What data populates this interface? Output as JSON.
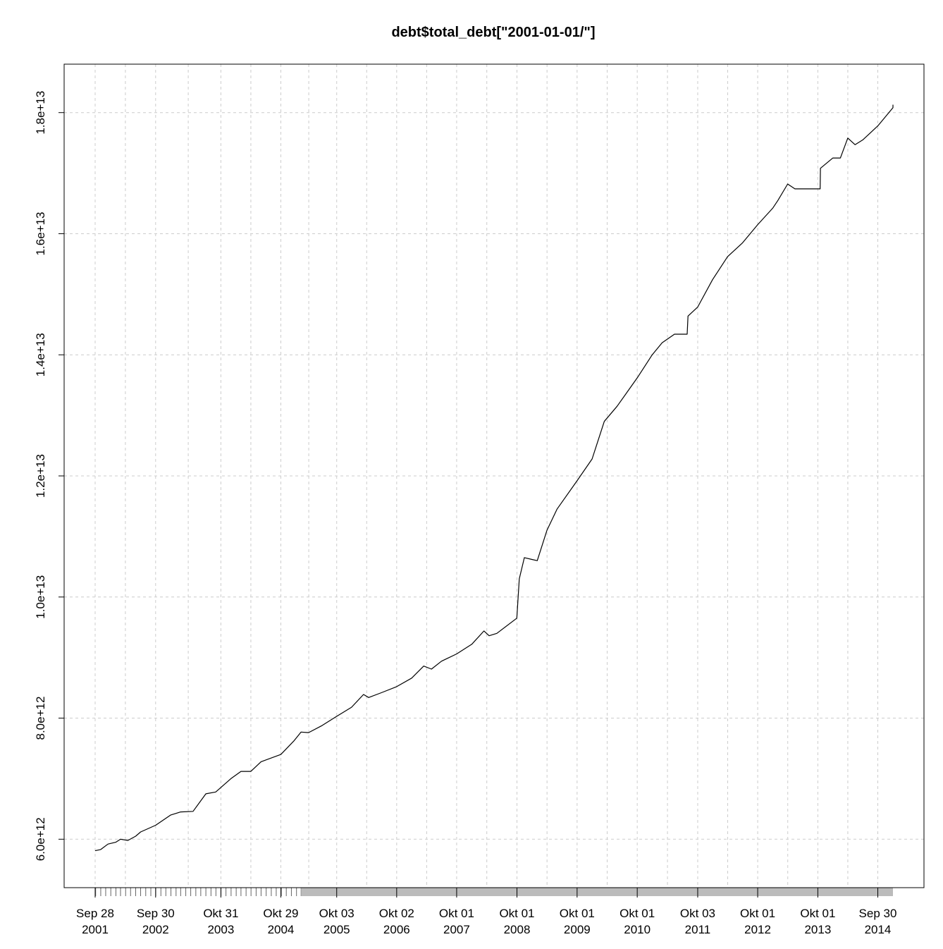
{
  "chart_data": {
    "type": "line",
    "title": "debt$total_debt[\"2001-01-01/\"]",
    "xlabel": "",
    "ylabel": "",
    "xlim": [
      "2001-09-28",
      "2014-12-31"
    ],
    "ylim": [
      5200000000000.0,
      18800000000000.0
    ],
    "grid": true,
    "y_ticks": [
      {
        "value": 6000000000000.0,
        "label": "6.0e+12"
      },
      {
        "value": 8000000000000.0,
        "label": "8.0e+12"
      },
      {
        "value": 10000000000000.0,
        "label": "1.0e+13"
      },
      {
        "value": 12000000000000.0,
        "label": "1.2e+13"
      },
      {
        "value": 14000000000000.0,
        "label": "1.4e+13"
      },
      {
        "value": 16000000000000.0,
        "label": "1.6e+13"
      },
      {
        "value": 18000000000000.0,
        "label": "1.8e+13"
      }
    ],
    "x_ticks": [
      {
        "date": "2001-09-28",
        "label1": "Sep 28",
        "label2": "2001"
      },
      {
        "date": "2002-09-30",
        "label1": "Sep 30",
        "label2": "2002"
      },
      {
        "date": "2003-10-31",
        "label1": "Okt 31",
        "label2": "2003"
      },
      {
        "date": "2004-10-29",
        "label1": "Okt 29",
        "label2": "2004"
      },
      {
        "date": "2005-10-03",
        "label1": "Okt 03",
        "label2": "2005"
      },
      {
        "date": "2006-10-02",
        "label1": "Okt 02",
        "label2": "2006"
      },
      {
        "date": "2007-10-01",
        "label1": "Okt 01",
        "label2": "2007"
      },
      {
        "date": "2008-10-01",
        "label1": "Okt 01",
        "label2": "2008"
      },
      {
        "date": "2009-10-01",
        "label1": "Okt 01",
        "label2": "2009"
      },
      {
        "date": "2010-10-01",
        "label1": "Okt 01",
        "label2": "2010"
      },
      {
        "date": "2011-10-03",
        "label1": "Okt 03",
        "label2": "2011"
      },
      {
        "date": "2012-10-01",
        "label1": "Okt 01",
        "label2": "2012"
      },
      {
        "date": "2013-10-01",
        "label1": "Okt 01",
        "label2": "2013"
      },
      {
        "date": "2014-09-30",
        "label1": "Sep 30",
        "label2": "2014"
      }
    ],
    "series": [
      {
        "values": [
          [
            "2001-09-28",
            5810000000000.0
          ],
          [
            "2001-11-01",
            5830000000000.0
          ],
          [
            "2001-12-15",
            5920000000000.0
          ],
          [
            "2002-01-31",
            5950000000000.0
          ],
          [
            "2002-03-01",
            6000000000000.0
          ],
          [
            "2002-04-15",
            5980000000000.0
          ],
          [
            "2002-06-01",
            6050000000000.0
          ],
          [
            "2002-07-01",
            6120000000000.0
          ],
          [
            "2002-09-30",
            6230000000000.0
          ],
          [
            "2002-12-31",
            6400000000000.0
          ],
          [
            "2003-03-01",
            6450000000000.0
          ],
          [
            "2003-05-15",
            6460000000000.0
          ],
          [
            "2003-08-01",
            6750000000000.0
          ],
          [
            "2003-09-30",
            6780000000000.0
          ],
          [
            "2003-12-31",
            7000000000000.0
          ],
          [
            "2004-03-01",
            7120000000000.0
          ],
          [
            "2004-04-30",
            7120000000000.0
          ],
          [
            "2004-07-01",
            7280000000000.0
          ],
          [
            "2004-10-29",
            7400000000000.0
          ],
          [
            "2005-01-15",
            7620000000000.0
          ],
          [
            "2005-03-01",
            7770000000000.0
          ],
          [
            "2005-04-15",
            7760000000000.0
          ],
          [
            "2005-07-01",
            7870000000000.0
          ],
          [
            "2005-10-03",
            8030000000000.0
          ],
          [
            "2006-01-01",
            8180000000000.0
          ],
          [
            "2006-03-15",
            8390000000000.0
          ],
          [
            "2006-04-15",
            8340000000000.0
          ],
          [
            "2006-07-01",
            8420000000000.0
          ],
          [
            "2006-10-02",
            8520000000000.0
          ],
          [
            "2007-01-01",
            8660000000000.0
          ],
          [
            "2007-03-15",
            8860000000000.0
          ],
          [
            "2007-05-01",
            8810000000000.0
          ],
          [
            "2007-07-01",
            8940000000000.0
          ],
          [
            "2007-10-01",
            9060000000000.0
          ],
          [
            "2008-01-01",
            9220000000000.0
          ],
          [
            "2008-03-15",
            9440000000000.0
          ],
          [
            "2008-04-15",
            9360000000000.0
          ],
          [
            "2008-06-01",
            9400000000000.0
          ],
          [
            "2008-09-30",
            9650000000000.0
          ],
          [
            "2008-10-15",
            10300000000000.0
          ],
          [
            "2008-11-15",
            10650000000000.0
          ],
          [
            "2008-12-31",
            10620000000000.0
          ],
          [
            "2009-02-01",
            10600000000000.0
          ],
          [
            "2009-04-01",
            11100000000000.0
          ],
          [
            "2009-06-01",
            11450000000000.0
          ],
          [
            "2009-10-01",
            11920000000000.0
          ],
          [
            "2009-12-31",
            12280000000000.0
          ],
          [
            "2010-03-15",
            12900000000000.0
          ],
          [
            "2010-06-01",
            13150000000000.0
          ],
          [
            "2010-10-01",
            13620000000000.0
          ],
          [
            "2010-12-31",
            14000000000000.0
          ],
          [
            "2011-03-01",
            14200000000000.0
          ],
          [
            "2011-05-15",
            14340000000000.0
          ],
          [
            "2011-07-31",
            14340000000000.0
          ],
          [
            "2011-08-05",
            14640000000000.0
          ],
          [
            "2011-10-03",
            14790000000000.0
          ],
          [
            "2012-01-01",
            15240000000000.0
          ],
          [
            "2012-04-01",
            15620000000000.0
          ],
          [
            "2012-07-01",
            15850000000000.0
          ],
          [
            "2012-10-01",
            16150000000000.0
          ],
          [
            "2012-12-31",
            16420000000000.0
          ],
          [
            "2013-02-01",
            16550000000000.0
          ],
          [
            "2013-04-01",
            16820000000000.0
          ],
          [
            "2013-05-15",
            16740000000000.0
          ],
          [
            "2013-07-01",
            16740000000000.0
          ],
          [
            "2013-10-15",
            16740000000000.0
          ],
          [
            "2013-10-17",
            17080000000000.0
          ],
          [
            "2013-12-31",
            17250000000000.0
          ],
          [
            "2014-02-15",
            17250000000000.0
          ],
          [
            "2014-04-01",
            17580000000000.0
          ],
          [
            "2014-05-15",
            17470000000000.0
          ],
          [
            "2014-07-01",
            17550000000000.0
          ],
          [
            "2014-09-30",
            17780000000000.0
          ],
          [
            "2014-12-31",
            18080000000000.0
          ],
          [
            "2015-01-10",
            18130000000000.0
          ]
        ]
      }
    ]
  }
}
